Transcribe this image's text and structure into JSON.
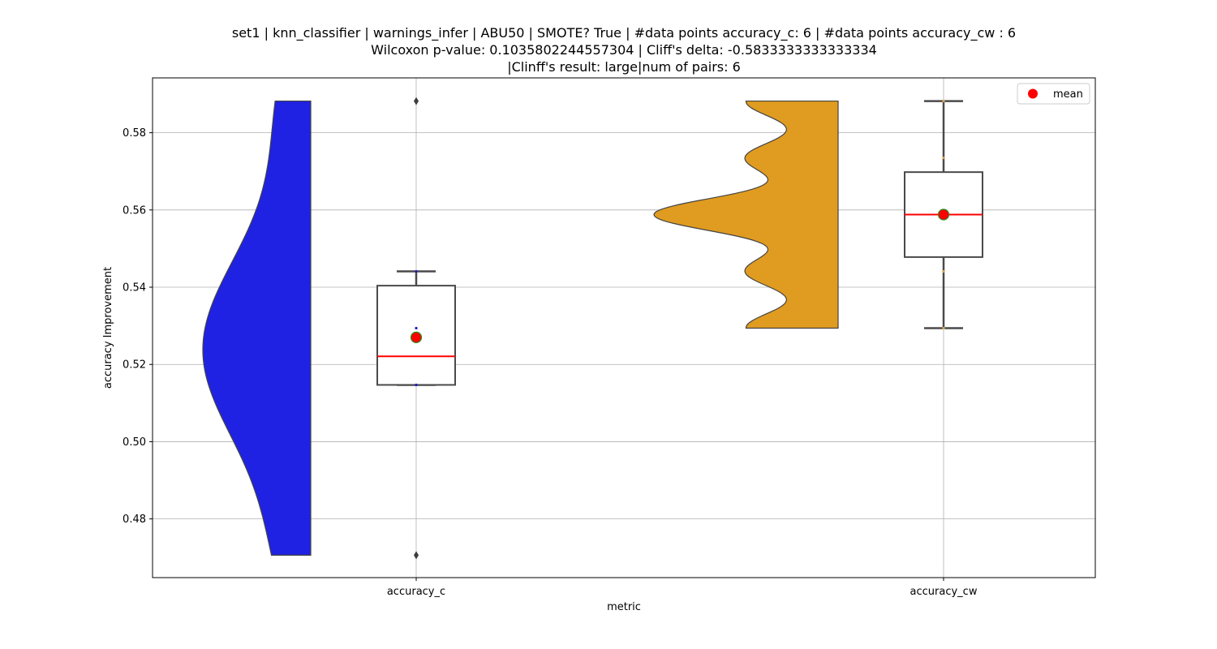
{
  "chart_data": {
    "type": "violin-box",
    "title_lines": [
      "set1 | knn_classifier | warnings_infer | ABU50 | SMOTE? True | #data points accuracy_c: 6 | #data points accuracy_cw : 6",
      "Wilcoxon p-value: 0.1035802244557304 | Cliff's delta: -0.5833333333333334",
      "|Clinff's result: large|num of pairs: 6"
    ],
    "xlabel": "metric",
    "ylabel": "accuracy Improvement",
    "ylim": [
      0.4648,
      0.5942
    ],
    "yticks": [
      0.48,
      0.5,
      0.52,
      0.54,
      0.56,
      0.58
    ],
    "ytick_labels": [
      "0.48",
      "0.50",
      "0.52",
      "0.54",
      "0.56",
      "0.58"
    ],
    "grid": true,
    "legend": {
      "placement": "top-right",
      "entries": [
        {
          "label": "mean",
          "color": "#ff0000"
        }
      ]
    },
    "categories": [
      "accuracy_c",
      "accuracy_cw"
    ],
    "groups": [
      {
        "name": "accuracy_c",
        "violin_color": "#1f22e2",
        "violin_range": [
          0.4706,
          0.5882
        ],
        "points": [
          0.4706,
          0.5147,
          0.5294,
          0.5147,
          0.5441,
          0.5882
        ],
        "box": {
          "whisker_low": 0.5147,
          "q1": 0.5147,
          "median": 0.5221,
          "q3": 0.5404,
          "whisker_high": 0.5441
        },
        "outliers": [
          0.5882,
          0.4706
        ],
        "mean": 0.527
      },
      {
        "name": "accuracy_cw",
        "violin_color": "#e09c20",
        "violin_range": [
          0.5294,
          0.5882
        ],
        "points": [
          0.5294,
          0.5441,
          0.5588,
          0.5588,
          0.5735,
          0.5882
        ],
        "box": {
          "whisker_low": 0.5294,
          "q1": 0.5478,
          "median": 0.5588,
          "q3": 0.5698,
          "whisker_high": 0.5882
        },
        "outliers": [],
        "mean": 0.5588
      }
    ],
    "box_median_color": "#ff0000",
    "mean_marker_color": "#ff0000",
    "mean_marker_edge": "#2e8b22"
  }
}
